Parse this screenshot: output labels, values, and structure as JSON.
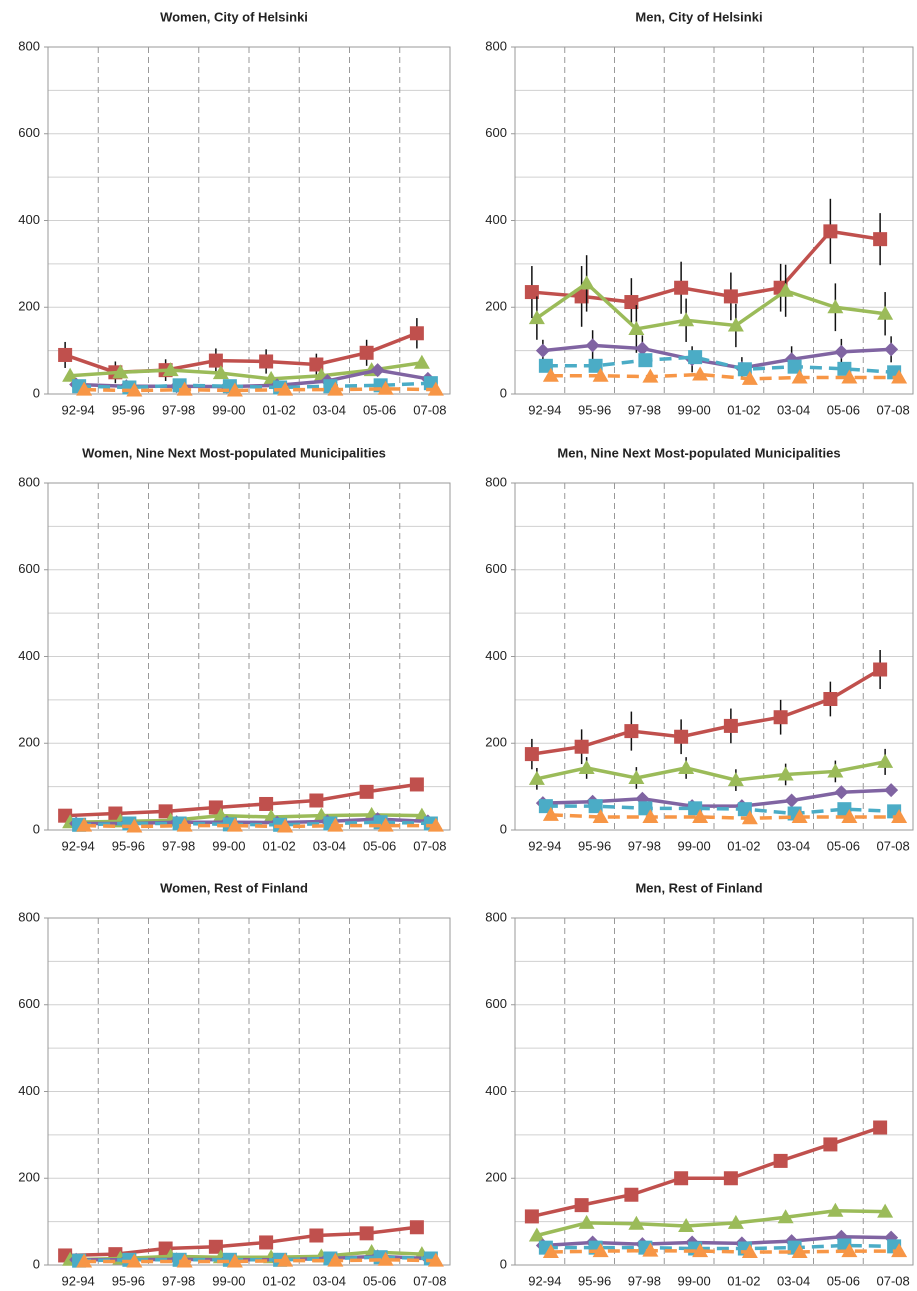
{
  "chart_data": [
    {
      "type": "line",
      "title": "Women, City of Helsinki",
      "categories": [
        "92-94",
        "95-96",
        "97-98",
        "99-00",
        "01-02",
        "03-04",
        "05-06",
        "07-08"
      ],
      "ylim": [
        0,
        800
      ],
      "yticks": [
        0,
        200,
        400,
        600,
        800
      ],
      "ygrid": [
        100,
        200,
        300,
        400,
        500,
        600,
        700,
        800
      ],
      "grid": true,
      "series": [
        {
          "color": "#c0504d",
          "marker": "square",
          "dash": false,
          "values": [
            90,
            50,
            55,
            77,
            75,
            68,
            95,
            140
          ],
          "errors": [
            30,
            25,
            25,
            28,
            28,
            25,
            30,
            35
          ]
        },
        {
          "color": "#9bbb59",
          "marker": "triangle",
          "dash": false,
          "values": [
            42,
            50,
            55,
            48,
            35,
            42,
            55,
            72
          ]
        },
        {
          "color": "#8064a2",
          "marker": "diamond",
          "dash": false,
          "values": [
            22,
            18,
            18,
            17,
            20,
            30,
            55,
            35
          ]
        },
        {
          "color": "#4bacc6",
          "marker": "square",
          "dash": true,
          "values": [
            18,
            15,
            20,
            18,
            15,
            18,
            20,
            25
          ]
        },
        {
          "color": "#f79646",
          "marker": "triangle",
          "dash": true,
          "values": [
            10,
            8,
            10,
            8,
            10,
            10,
            12,
            10
          ]
        }
      ]
    },
    {
      "type": "line",
      "title": "Men, City of Helsinki",
      "categories": [
        "92-94",
        "95-96",
        "97-98",
        "99-00",
        "01-02",
        "03-04",
        "05-06",
        "07-08"
      ],
      "ylim": [
        0,
        800
      ],
      "yticks": [
        0,
        200,
        400,
        600,
        800
      ],
      "ygrid": [
        100,
        200,
        300,
        400,
        500,
        600,
        700,
        800
      ],
      "grid": true,
      "series": [
        {
          "color": "#c0504d",
          "marker": "square",
          "dash": false,
          "values": [
            235,
            225,
            212,
            245,
            225,
            245,
            375,
            357
          ],
          "errors": [
            60,
            70,
            55,
            60,
            55,
            55,
            75,
            60
          ]
        },
        {
          "color": "#9bbb59",
          "marker": "triangle",
          "dash": false,
          "values": [
            175,
            255,
            150,
            170,
            158,
            238,
            200,
            185
          ],
          "errors": [
            50,
            65,
            55,
            50,
            50,
            60,
            55,
            50
          ]
        },
        {
          "color": "#8064a2",
          "marker": "diamond",
          "dash": false,
          "values": [
            100,
            112,
            105,
            80,
            60,
            80,
            97,
            103
          ],
          "errors": [
            25,
            35,
            30,
            30,
            25,
            30,
            30,
            30
          ]
        },
        {
          "color": "#4bacc6",
          "marker": "square",
          "dash": true,
          "values": [
            65,
            65,
            78,
            85,
            57,
            63,
            58,
            50
          ]
        },
        {
          "color": "#f79646",
          "marker": "triangle",
          "dash": true,
          "values": [
            42,
            42,
            40,
            45,
            35,
            38,
            38,
            38
          ]
        }
      ]
    },
    {
      "type": "line",
      "title": "Women, Nine Next Most-populated Municipalities",
      "categories": [
        "92-94",
        "95-96",
        "97-98",
        "99-00",
        "01-02",
        "03-04",
        "05-06",
        "07-08"
      ],
      "ylim": [
        0,
        800
      ],
      "yticks": [
        0,
        200,
        400,
        600,
        800
      ],
      "ygrid": [
        100,
        200,
        300,
        400,
        500,
        600,
        700,
        800
      ],
      "grid": true,
      "series": [
        {
          "color": "#c0504d",
          "marker": "square",
          "dash": false,
          "values": [
            33,
            38,
            43,
            52,
            60,
            68,
            88,
            105
          ]
        },
        {
          "color": "#9bbb59",
          "marker": "triangle",
          "dash": false,
          "values": [
            18,
            20,
            22,
            33,
            30,
            33,
            35,
            33
          ]
        },
        {
          "color": "#8064a2",
          "marker": "diamond",
          "dash": false,
          "values": [
            15,
            15,
            18,
            18,
            17,
            20,
            25,
            20
          ]
        },
        {
          "color": "#4bacc6",
          "marker": "square",
          "dash": true,
          "values": [
            12,
            15,
            15,
            13,
            12,
            15,
            18,
            15
          ]
        },
        {
          "color": "#f79646",
          "marker": "triangle",
          "dash": true,
          "values": [
            10,
            8,
            10,
            10,
            8,
            10,
            10,
            10
          ]
        }
      ]
    },
    {
      "type": "line",
      "title": "Men, Nine Next Most-populated Municipalities",
      "categories": [
        "92-94",
        "95-96",
        "97-98",
        "99-00",
        "01-02",
        "03-04",
        "05-06",
        "07-08"
      ],
      "ylim": [
        0,
        800
      ],
      "yticks": [
        0,
        200,
        400,
        600,
        800
      ],
      "ygrid": [
        100,
        200,
        300,
        400,
        500,
        600,
        700,
        800
      ],
      "grid": true,
      "series": [
        {
          "color": "#c0504d",
          "marker": "square",
          "dash": false,
          "values": [
            175,
            192,
            228,
            215,
            240,
            260,
            302,
            370
          ],
          "errors": [
            35,
            40,
            45,
            40,
            40,
            40,
            40,
            45
          ]
        },
        {
          "color": "#9bbb59",
          "marker": "triangle",
          "dash": false,
          "values": [
            118,
            143,
            120,
            143,
            115,
            128,
            135,
            157
          ],
          "errors": [
            25,
            25,
            25,
            25,
            25,
            25,
            25,
            30
          ]
        },
        {
          "color": "#8064a2",
          "marker": "diamond",
          "dash": false,
          "values": [
            62,
            65,
            72,
            55,
            55,
            68,
            87,
            92
          ]
        },
        {
          "color": "#4bacc6",
          "marker": "square",
          "dash": true,
          "values": [
            55,
            55,
            50,
            50,
            48,
            38,
            48,
            43
          ]
        },
        {
          "color": "#f79646",
          "marker": "triangle",
          "dash": true,
          "values": [
            35,
            30,
            30,
            30,
            27,
            30,
            30,
            30
          ]
        }
      ]
    },
    {
      "type": "line",
      "title": "Women, Rest of Finland",
      "categories": [
        "92-94",
        "95-96",
        "97-98",
        "99-00",
        "01-02",
        "03-04",
        "05-06",
        "07-08"
      ],
      "ylim": [
        0,
        800
      ],
      "yticks": [
        0,
        200,
        400,
        600,
        800
      ],
      "ygrid": [
        100,
        200,
        300,
        400,
        500,
        600,
        700,
        800
      ],
      "grid": true,
      "series": [
        {
          "color": "#c0504d",
          "marker": "square",
          "dash": false,
          "values": [
            22,
            25,
            38,
            42,
            52,
            68,
            73,
            87
          ]
        },
        {
          "color": "#9bbb59",
          "marker": "triangle",
          "dash": false,
          "values": [
            12,
            15,
            20,
            18,
            18,
            20,
            30,
            25
          ]
        },
        {
          "color": "#8064a2",
          "marker": "diamond",
          "dash": false,
          "values": [
            12,
            12,
            13,
            12,
            12,
            15,
            20,
            15
          ]
        },
        {
          "color": "#4bacc6",
          "marker": "square",
          "dash": true,
          "values": [
            10,
            12,
            12,
            12,
            12,
            15,
            18,
            15
          ]
        },
        {
          "color": "#f79646",
          "marker": "triangle",
          "dash": true,
          "values": [
            8,
            8,
            8,
            8,
            10,
            10,
            12,
            10
          ]
        }
      ]
    },
    {
      "type": "line",
      "title": "Men, Rest of Finland",
      "categories": [
        "92-94",
        "95-96",
        "97-98",
        "99-00",
        "01-02",
        "03-04",
        "05-06",
        "07-08"
      ],
      "ylim": [
        0,
        800
      ],
      "yticks": [
        0,
        200,
        400,
        600,
        800
      ],
      "ygrid": [
        100,
        200,
        300,
        400,
        500,
        600,
        700,
        800
      ],
      "grid": true,
      "series": [
        {
          "color": "#c0504d",
          "marker": "square",
          "dash": false,
          "values": [
            112,
            138,
            162,
            200,
            200,
            240,
            278,
            317
          ]
        },
        {
          "color": "#9bbb59",
          "marker": "triangle",
          "dash": false,
          "values": [
            68,
            97,
            95,
            90,
            97,
            110,
            125,
            123
          ]
        },
        {
          "color": "#8064a2",
          "marker": "diamond",
          "dash": false,
          "values": [
            45,
            52,
            48,
            52,
            50,
            55,
            65,
            63
          ]
        },
        {
          "color": "#4bacc6",
          "marker": "square",
          "dash": true,
          "values": [
            40,
            40,
            40,
            38,
            38,
            40,
            45,
            43
          ]
        },
        {
          "color": "#f79646",
          "marker": "triangle",
          "dash": true,
          "values": [
            30,
            32,
            33,
            32,
            30,
            30,
            32,
            32
          ]
        }
      ]
    }
  ]
}
